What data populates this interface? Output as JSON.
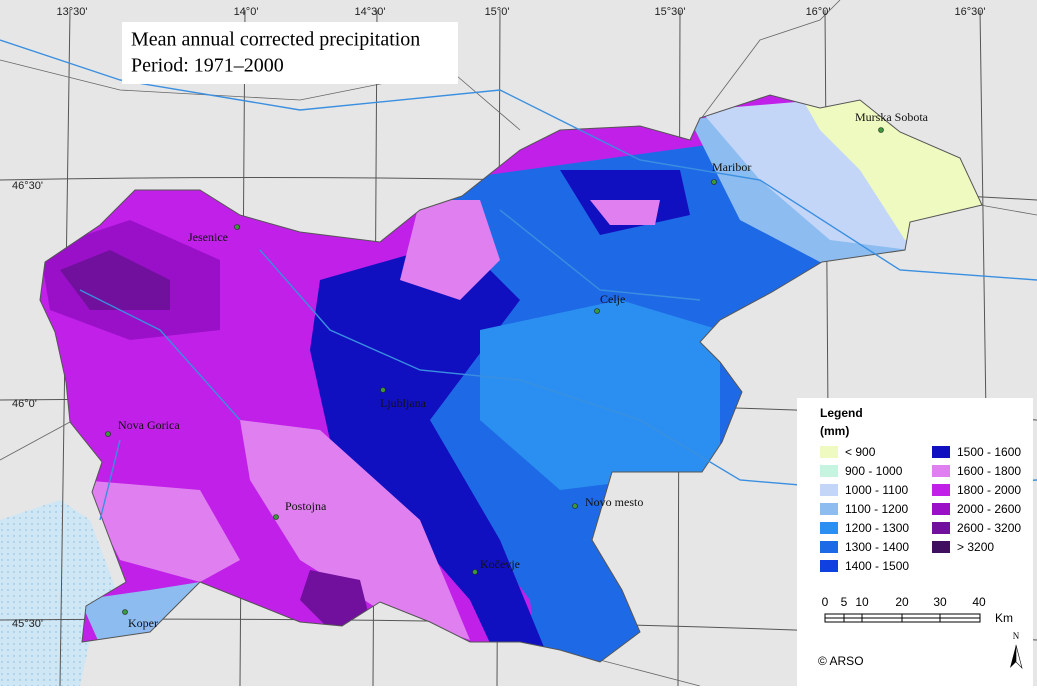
{
  "header": {
    "title": "Mean annual corrected precipitation",
    "period": "Period: 1971–2000"
  },
  "coordinates": {
    "top": [
      "13°30'",
      "14°0'",
      "14°30'",
      "15°0'",
      "15°30'",
      "16°0'",
      "16°30'"
    ],
    "left": [
      "46°30'",
      "46°0'",
      "45°30'"
    ]
  },
  "cities": [
    "Jesenice",
    "Ljubljana",
    "Celje",
    "Maribor",
    "Murska Sobota",
    "Nova Gorica",
    "Postojna",
    "Novo mesto",
    "Kočevje",
    "Koper"
  ],
  "legend": {
    "title": "Legend",
    "unit": "(mm)",
    "items": [
      {
        "label": "< 900",
        "color": "#effac0"
      },
      {
        "label": "900 - 1000",
        "color": "#c6f4e0"
      },
      {
        "label": "1000 - 1100",
        "color": "#c4d6f8"
      },
      {
        "label": "1100 - 1200",
        "color": "#8cbcf0"
      },
      {
        "label": "1200 - 1300",
        "color": "#2a8ff0"
      },
      {
        "label": "1300 - 1400",
        "color": "#1e6ae6"
      },
      {
        "label": "1400 - 1500",
        "color": "#1040e0"
      },
      {
        "label": "1500 - 1600",
        "color": "#1010c0"
      },
      {
        "label": "1600 - 1800",
        "color": "#e080f0"
      },
      {
        "label": "1800 - 2000",
        "color": "#c020e8"
      },
      {
        "label": "2000 - 2600",
        "color": "#9a10c8"
      },
      {
        "label": "2600 - 3200",
        "color": "#70109c"
      },
      {
        "label": "> 3200",
        "color": "#401060"
      }
    ]
  },
  "scale": [
    "0",
    "5",
    "10",
    "20",
    "30",
    "40",
    "Km"
  ],
  "north": "N",
  "copyright": "© ARSO"
}
